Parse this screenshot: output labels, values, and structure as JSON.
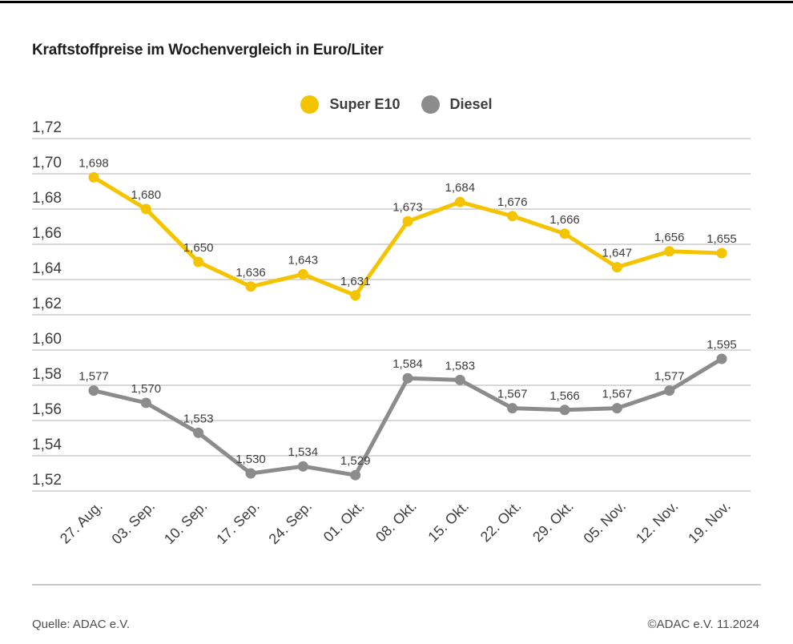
{
  "page": {
    "background": "#ffffff",
    "top_bar_color": "#000000"
  },
  "header": {
    "title": "Kraftstoffpreise im Wochenvergleich in Euro/Liter"
  },
  "legend": {
    "items": [
      {
        "id": "super-e10",
        "label": "Super E10",
        "color": "#F5C400"
      },
      {
        "id": "diesel",
        "label": "Diesel",
        "color": "#8C8C8C"
      }
    ]
  },
  "chart_data": {
    "type": "line",
    "title": "Kraftstoffpreise im Wochenvergleich in Euro/Liter",
    "unit": "Euro/Liter",
    "categories": [
      "27. Aug.",
      "03. Sep.",
      "10. Sep.",
      "17. Sep.",
      "24. Sep.",
      "01. Okt.",
      "08. Okt.",
      "15. Okt.",
      "22. Okt.",
      "29. Okt.",
      "05. Nov.",
      "12. Nov.",
      "19. Nov."
    ],
    "series": [
      {
        "id": "super-e10",
        "name": "Super E10",
        "color": "#F5C400",
        "values": [
          1.698,
          1.68,
          1.65,
          1.636,
          1.643,
          1.631,
          1.673,
          1.684,
          1.676,
          1.666,
          1.647,
          1.656,
          1.655
        ]
      },
      {
        "id": "diesel",
        "name": "Diesel",
        "color": "#8C8C8C",
        "values": [
          1.577,
          1.57,
          1.553,
          1.53,
          1.534,
          1.529,
          1.584,
          1.583,
          1.567,
          1.566,
          1.567,
          1.577,
          1.595
        ]
      }
    ],
    "ylim": [
      1.52,
      1.72
    ],
    "ytick_step": 0.02,
    "value_decimals": 3,
    "ytick_decimals": 2,
    "decimal_separator": ",",
    "grid": true,
    "legend_position": "top-center",
    "xlabel": "",
    "ylabel": "",
    "colors": {
      "grid": "#cccccc",
      "axis_text": "#3d3d3d",
      "label_text": "#3d3d3d"
    }
  },
  "footer": {
    "source_left": "Quelle: ADAC e.V.",
    "source_right": "©ADAC e.V. 11.2024"
  }
}
